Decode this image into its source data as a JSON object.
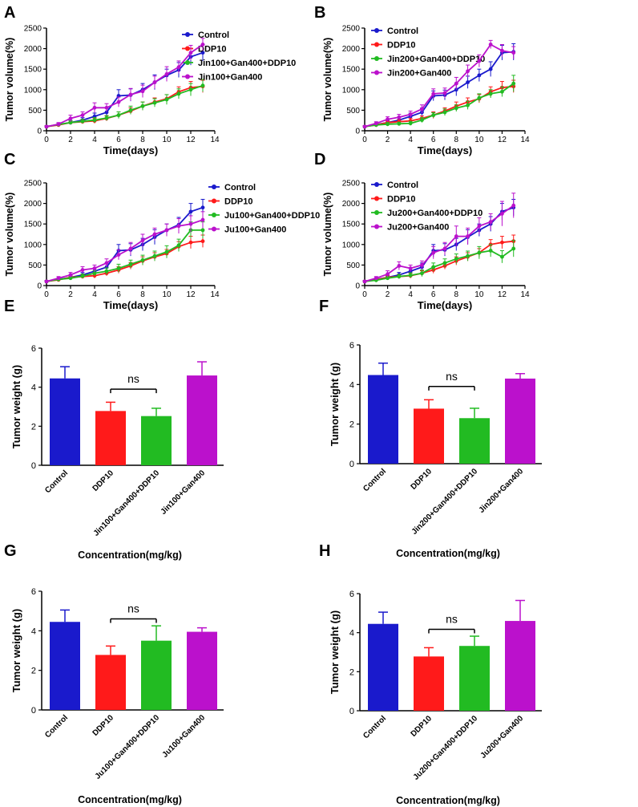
{
  "figure": {
    "colors": {
      "control": "#1a1acc",
      "ddp": "#ff1a1a",
      "combo": "#22bb22",
      "herb": "#bb11cc",
      "axis": "#000000"
    }
  },
  "chart_data": [
    {
      "panel": "A",
      "type": "line",
      "xlabel": "Time(days)",
      "ylabel": "Tumor volume(%)",
      "xlim": [
        0,
        14
      ],
      "ylim": [
        0,
        2500
      ],
      "xticks": [
        "0",
        "2",
        "4",
        "6",
        "8",
        "10",
        "12",
        "14"
      ],
      "yticks": [
        "0",
        "500",
        "1000",
        "1500",
        "2000",
        "2500"
      ],
      "x": [
        0,
        1,
        2,
        3,
        4,
        5,
        6,
        7,
        8,
        9,
        10,
        11,
        12,
        13
      ],
      "series": [
        {
          "name": "Control",
          "color_key": "control",
          "values": [
            100,
            150,
            200,
            260,
            350,
            450,
            850,
            870,
            1000,
            1180,
            1350,
            1480,
            1800,
            1900
          ],
          "errors": [
            20,
            30,
            50,
            60,
            80,
            100,
            150,
            150,
            150,
            180,
            150,
            180,
            200,
            200
          ]
        },
        {
          "name": "DDP10",
          "color_key": "ddp",
          "values": [
            100,
            140,
            200,
            220,
            240,
            300,
            380,
            480,
            600,
            700,
            780,
            950,
            1050,
            1080
          ],
          "errors": [
            20,
            30,
            40,
            50,
            60,
            60,
            80,
            80,
            100,
            100,
            100,
            120,
            150,
            150
          ]
        },
        {
          "name": "Jin100+Gan400+DDP10",
          "color_key": "combo",
          "values": [
            100,
            150,
            200,
            230,
            260,
            310,
            380,
            500,
            600,
            680,
            760,
            900,
            1000,
            1100
          ],
          "errors": [
            20,
            30,
            40,
            50,
            60,
            60,
            80,
            100,
            100,
            100,
            120,
            120,
            150,
            150
          ]
        },
        {
          "name": "Jin100+Gan400",
          "color_key": "herb",
          "values": [
            100,
            160,
            300,
            380,
            560,
            560,
            700,
            880,
            960,
            1180,
            1380,
            1550,
            1900,
            2100
          ],
          "errors": [
            20,
            40,
            80,
            80,
            120,
            100,
            120,
            150,
            150,
            150,
            180,
            150,
            180,
            150
          ]
        }
      ]
    },
    {
      "panel": "B",
      "type": "line",
      "xlabel": "Time(days)",
      "ylabel": "Tumor volume(%)",
      "xlim": [
        0,
        14
      ],
      "ylim": [
        0,
        2500
      ],
      "xticks": [
        "0",
        "2",
        "4",
        "6",
        "8",
        "10",
        "12",
        "14"
      ],
      "yticks": [
        "0",
        "500",
        "1000",
        "1500",
        "2000",
        "2500"
      ],
      "x": [
        0,
        1,
        2,
        3,
        4,
        5,
        6,
        7,
        8,
        9,
        10,
        11,
        12,
        13
      ],
      "series": [
        {
          "name": "Control",
          "color_key": "control",
          "values": [
            100,
            150,
            200,
            260,
            350,
            450,
            850,
            870,
            1000,
            1180,
            1350,
            1500,
            1900,
            1920
          ],
          "errors": [
            20,
            30,
            50,
            60,
            80,
            100,
            120,
            120,
            150,
            150,
            150,
            180,
            180,
            200
          ]
        },
        {
          "name": "DDP10",
          "color_key": "ddp",
          "values": [
            100,
            140,
            200,
            220,
            240,
            300,
            380,
            480,
            600,
            700,
            780,
            950,
            1050,
            1080
          ],
          "errors": [
            20,
            30,
            40,
            50,
            60,
            60,
            80,
            80,
            100,
            100,
            100,
            120,
            150,
            150
          ]
        },
        {
          "name": "Jin200+Gan400+DDP10",
          "color_key": "combo",
          "values": [
            100,
            140,
            160,
            170,
            180,
            260,
            380,
            450,
            550,
            620,
            800,
            900,
            950,
            1150
          ],
          "errors": [
            20,
            30,
            40,
            40,
            50,
            60,
            60,
            80,
            80,
            100,
            100,
            100,
            120,
            200
          ]
        },
        {
          "name": "Jin200+Gan400",
          "color_key": "herb",
          "values": [
            100,
            180,
            280,
            330,
            400,
            530,
            900,
            920,
            1150,
            1450,
            1700,
            2100,
            1950,
            1900
          ],
          "errors": [
            20,
            40,
            60,
            70,
            80,
            100,
            120,
            120,
            150,
            150,
            150,
            100,
            150,
            150
          ]
        }
      ]
    },
    {
      "panel": "C",
      "type": "line",
      "xlabel": "Time(days)",
      "ylabel": "Tumor volume(%)",
      "xlim": [
        0,
        14
      ],
      "ylim": [
        0,
        2500
      ],
      "xticks": [
        "0",
        "2",
        "4",
        "6",
        "8",
        "10",
        "12",
        "14"
      ],
      "yticks": [
        "0",
        "500",
        "1000",
        "1500",
        "2000",
        "2500"
      ],
      "x": [
        0,
        1,
        2,
        3,
        4,
        5,
        6,
        7,
        8,
        9,
        10,
        11,
        12,
        13
      ],
      "series": [
        {
          "name": "Control",
          "color_key": "control",
          "values": [
            100,
            150,
            200,
            260,
            350,
            450,
            850,
            870,
            1000,
            1180,
            1350,
            1480,
            1800,
            1900
          ],
          "errors": [
            20,
            30,
            50,
            60,
            80,
            100,
            150,
            150,
            150,
            180,
            150,
            180,
            200,
            200
          ]
        },
        {
          "name": "DDP10",
          "color_key": "ddp",
          "values": [
            100,
            140,
            200,
            220,
            240,
            300,
            380,
            480,
            600,
            700,
            780,
            950,
            1050,
            1080
          ],
          "errors": [
            20,
            30,
            40,
            50,
            60,
            60,
            80,
            80,
            100,
            100,
            100,
            120,
            150,
            150
          ]
        },
        {
          "name": "Ju100+Gan400+DDP10",
          "color_key": "combo",
          "values": [
            100,
            150,
            180,
            230,
            300,
            350,
            420,
            520,
            620,
            720,
            820,
            980,
            1350,
            1350
          ],
          "errors": [
            20,
            30,
            40,
            50,
            60,
            80,
            100,
            100,
            120,
            120,
            150,
            150,
            200,
            200
          ]
        },
        {
          "name": "Ju100+Gan400",
          "color_key": "herb",
          "values": [
            100,
            180,
            260,
            380,
            420,
            550,
            750,
            900,
            1100,
            1250,
            1350,
            1450,
            1500,
            1600
          ],
          "errors": [
            20,
            40,
            60,
            80,
            80,
            100,
            120,
            150,
            150,
            150,
            150,
            180,
            200,
            200
          ]
        }
      ]
    },
    {
      "panel": "D",
      "type": "line",
      "xlabel": "Time(days)",
      "ylabel": "Tumor volume(%)",
      "xlim": [
        0,
        14
      ],
      "ylim": [
        0,
        2500
      ],
      "xticks": [
        "0",
        "2",
        "4",
        "6",
        "8",
        "10",
        "12",
        "14"
      ],
      "yticks": [
        "0",
        "500",
        "1000",
        "1500",
        "2000",
        "2500"
      ],
      "x": [
        0,
        1,
        2,
        3,
        4,
        5,
        6,
        7,
        8,
        9,
        10,
        11,
        12,
        13
      ],
      "series": [
        {
          "name": "Control",
          "color_key": "control",
          "values": [
            100,
            150,
            200,
            260,
            350,
            450,
            850,
            870,
            1000,
            1180,
            1350,
            1500,
            1800,
            1900
          ],
          "errors": [
            20,
            30,
            50,
            60,
            80,
            100,
            150,
            150,
            150,
            180,
            150,
            180,
            200,
            200
          ]
        },
        {
          "name": "DDP10",
          "color_key": "ddp",
          "values": [
            100,
            140,
            200,
            220,
            240,
            300,
            380,
            480,
            600,
            700,
            800,
            1000,
            1050,
            1080
          ],
          "errors": [
            20,
            30,
            40,
            50,
            60,
            60,
            80,
            80,
            100,
            100,
            100,
            120,
            150,
            150
          ]
        },
        {
          "name": "Ju200+Gan400+DDP10",
          "color_key": "combo",
          "values": [
            100,
            130,
            180,
            220,
            250,
            300,
            450,
            550,
            650,
            720,
            800,
            850,
            700,
            900
          ],
          "errors": [
            20,
            30,
            40,
            50,
            60,
            80,
            100,
            100,
            120,
            120,
            150,
            150,
            150,
            200
          ]
        },
        {
          "name": "Ju200+Gan400",
          "color_key": "herb",
          "values": [
            100,
            180,
            280,
            480,
            420,
            500,
            800,
            900,
            1200,
            1200,
            1450,
            1550,
            1750,
            1950
          ],
          "errors": [
            20,
            40,
            80,
            100,
            80,
            100,
            150,
            150,
            250,
            200,
            200,
            200,
            300,
            300
          ]
        }
      ]
    },
    {
      "panel": "E",
      "type": "bar",
      "ylabel": "Tumor weight (g)",
      "xlabel": "Concentration(mg/kg)",
      "ylim": [
        0,
        6
      ],
      "yticks": [
        "0",
        "2",
        "4",
        "6"
      ],
      "categories": [
        "Control",
        "DDP10",
        "Jin100+Gan400+DDP10",
        "Jin100+Gan400"
      ],
      "color_keys": [
        "control",
        "ddp",
        "combo",
        "herb"
      ],
      "values": [
        4.45,
        2.78,
        2.52,
        4.6
      ],
      "errors": [
        0.6,
        0.45,
        0.4,
        0.7
      ],
      "annotation": "ns"
    },
    {
      "panel": "F",
      "type": "bar",
      "ylabel": "Tumor weight (g)",
      "xlabel": "Concentration(mg/kg)",
      "ylim": [
        0,
        6
      ],
      "yticks": [
        "0",
        "2",
        "4",
        "6"
      ],
      "categories": [
        "Control",
        "DDP10",
        "Jin200+Gan400+DDP10",
        "Jin200+Gan400"
      ],
      "color_keys": [
        "control",
        "ddp",
        "combo",
        "herb"
      ],
      "values": [
        4.48,
        2.78,
        2.3,
        4.3
      ],
      "errors": [
        0.6,
        0.45,
        0.5,
        0.25
      ],
      "annotation": "ns"
    },
    {
      "panel": "G",
      "type": "bar",
      "ylabel": "Tumor weight (g)",
      "xlabel": "Concentration(mg/kg)",
      "ylim": [
        0,
        6
      ],
      "yticks": [
        "0",
        "2",
        "4",
        "6"
      ],
      "categories": [
        "Control",
        "DDP10",
        "Ju100+Gan400+DDP10",
        "Ju100+Gan400"
      ],
      "color_keys": [
        "control",
        "ddp",
        "combo",
        "herb"
      ],
      "values": [
        4.45,
        2.78,
        3.5,
        3.95
      ],
      "errors": [
        0.6,
        0.45,
        0.75,
        0.2
      ],
      "annotation": "ns"
    },
    {
      "panel": "H",
      "type": "bar",
      "ylabel": "Tumor weight (g)",
      "xlabel": "Concentration(mg/kg)",
      "ylim": [
        0,
        6
      ],
      "yticks": [
        "0",
        "2",
        "4",
        "6"
      ],
      "categories": [
        "Control",
        "DDP10",
        "Ju200+Gan400+DDP10",
        "Ju200+Gan400"
      ],
      "color_keys": [
        "control",
        "ddp",
        "combo",
        "herb"
      ],
      "values": [
        4.45,
        2.78,
        3.32,
        4.6
      ],
      "errors": [
        0.6,
        0.45,
        0.5,
        1.05
      ],
      "annotation": "ns"
    }
  ]
}
